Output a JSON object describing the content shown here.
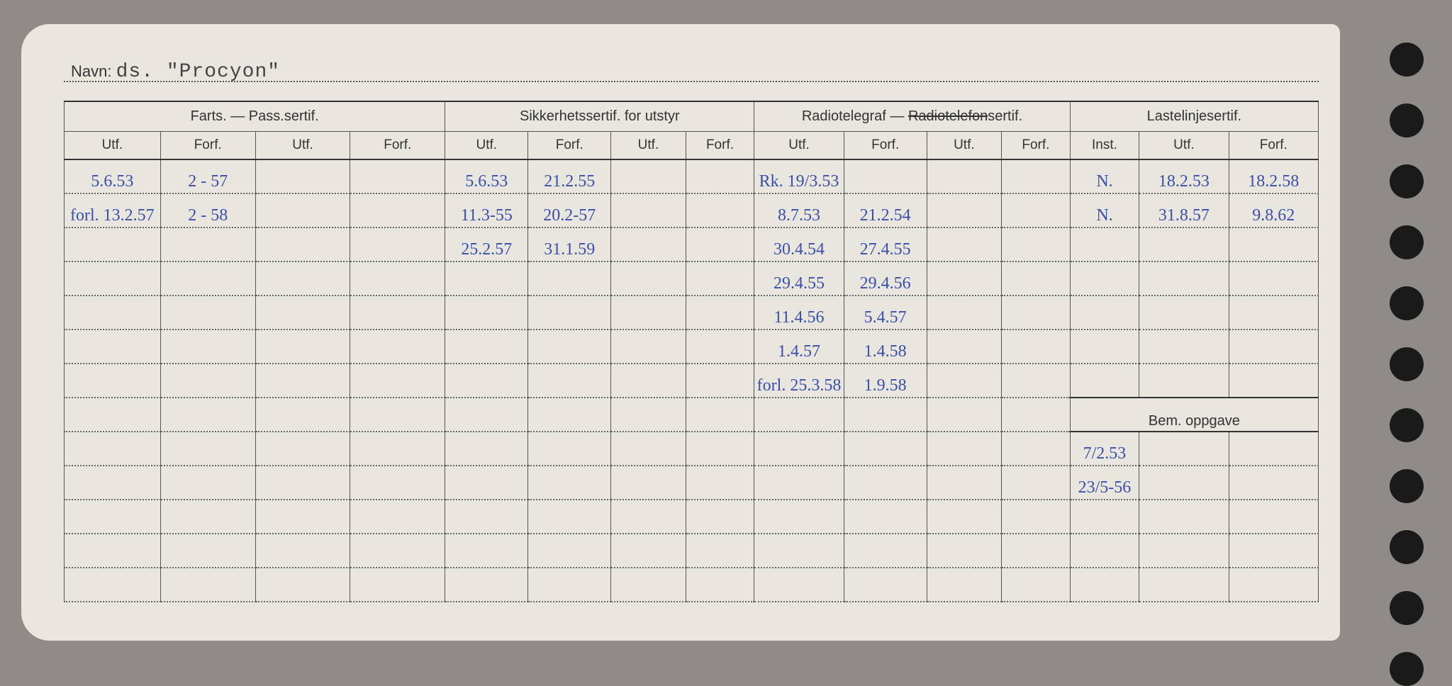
{
  "page": {
    "background_color": "#8f8c87",
    "card_color": "#e8e6de",
    "ink_color": "#3b4fa8",
    "print_color": "#333333",
    "punch_hole_count": 11
  },
  "navn": {
    "label": "Navn:",
    "value": "ds.  \"Procyon\""
  },
  "groups": {
    "farts": "Farts. — Pass.sertif.",
    "sikkerhet": "Sikkerhetssertif. for utstyr",
    "radio_prefix": "Radiotelegraf — ",
    "radio_strike": "Radiotelefon",
    "radio_suffix": "sertif.",
    "lastelinje": "Lastelinjesertif.",
    "bem": "Bem. oppgave"
  },
  "subheaders": {
    "utf": "Utf.",
    "forf": "Forf.",
    "inst": "Inst."
  },
  "rows": [
    {
      "farts_utf": "5.6.53",
      "farts_forf": "2 - 57",
      "farts_utf2": "",
      "farts_forf2": "",
      "sikk_utf": "5.6.53",
      "sikk_forf": "21.2.55",
      "sikk_utf2": "",
      "sikk_forf2": "",
      "radio_utf": "Rk. 19/3.53",
      "radio_forf": "",
      "radio_utf2": "",
      "radio_forf2": "",
      "laste_inst": "N.",
      "laste_utf": "18.2.53",
      "laste_forf": "18.2.58"
    },
    {
      "farts_utf": "forl. 13.2.57",
      "farts_forf": "2 - 58",
      "farts_utf2": "",
      "farts_forf2": "",
      "sikk_utf": "11.3-55",
      "sikk_forf": "20.2-57",
      "sikk_utf2": "",
      "sikk_forf2": "",
      "radio_utf": "8.7.53",
      "radio_forf": "21.2.54",
      "radio_utf2": "",
      "radio_forf2": "",
      "laste_inst": "N.",
      "laste_utf": "31.8.57",
      "laste_forf": "9.8.62"
    },
    {
      "farts_utf": "",
      "farts_forf": "",
      "farts_utf2": "",
      "farts_forf2": "",
      "sikk_utf": "25.2.57",
      "sikk_forf": "31.1.59",
      "sikk_utf2": "",
      "sikk_forf2": "",
      "radio_utf": "30.4.54",
      "radio_forf": "27.4.55",
      "radio_utf2": "",
      "radio_forf2": "",
      "laste_inst": "",
      "laste_utf": "",
      "laste_forf": ""
    },
    {
      "farts_utf": "",
      "farts_forf": "",
      "farts_utf2": "",
      "farts_forf2": "",
      "sikk_utf": "",
      "sikk_forf": "",
      "sikk_utf2": "",
      "sikk_forf2": "",
      "radio_utf": "29.4.55",
      "radio_forf": "29.4.56",
      "radio_utf2": "",
      "radio_forf2": "",
      "laste_inst": "",
      "laste_utf": "",
      "laste_forf": ""
    },
    {
      "farts_utf": "",
      "farts_forf": "",
      "farts_utf2": "",
      "farts_forf2": "",
      "sikk_utf": "",
      "sikk_forf": "",
      "sikk_utf2": "",
      "sikk_forf2": "",
      "radio_utf": "11.4.56",
      "radio_forf": "5.4.57",
      "radio_utf2": "",
      "radio_forf2": "",
      "laste_inst": "",
      "laste_utf": "",
      "laste_forf": ""
    },
    {
      "farts_utf": "",
      "farts_forf": "",
      "farts_utf2": "",
      "farts_forf2": "",
      "sikk_utf": "",
      "sikk_forf": "",
      "sikk_utf2": "",
      "sikk_forf2": "",
      "radio_utf": "1.4.57",
      "radio_forf": "1.4.58",
      "radio_utf2": "",
      "radio_forf2": "",
      "laste_inst": "",
      "laste_utf": "",
      "laste_forf": ""
    },
    {
      "farts_utf": "",
      "farts_forf": "",
      "farts_utf2": "",
      "farts_forf2": "",
      "sikk_utf": "",
      "sikk_forf": "",
      "sikk_utf2": "",
      "sikk_forf2": "",
      "radio_utf": "forl. 25.3.58",
      "radio_forf": "1.9.58",
      "radio_utf2": "",
      "radio_forf2": "",
      "laste_inst": "",
      "laste_utf": "",
      "laste_forf": ""
    }
  ],
  "bem_rows": [
    {
      "c1": "7/2.53",
      "c2": "",
      "c3": ""
    },
    {
      "c1": "23/5-56",
      "c2": "",
      "c3": ""
    },
    {
      "c1": "",
      "c2": "",
      "c3": ""
    },
    {
      "c1": "",
      "c2": "",
      "c3": ""
    }
  ]
}
